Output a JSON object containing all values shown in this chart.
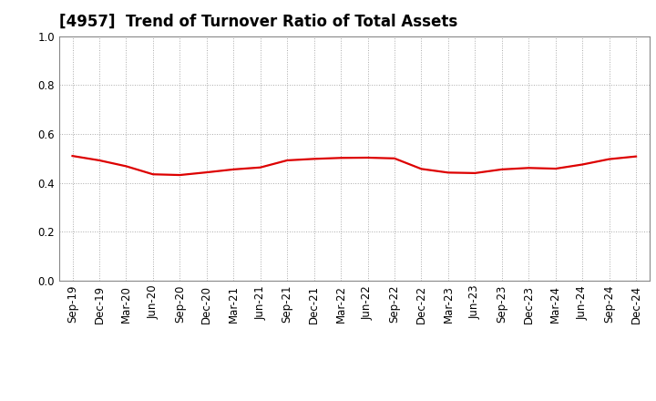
{
  "title": "[4957]  Trend of Turnover Ratio of Total Assets",
  "labels": [
    "Sep-19",
    "Dec-19",
    "Mar-20",
    "Jun-20",
    "Sep-20",
    "Dec-20",
    "Mar-21",
    "Jun-21",
    "Sep-21",
    "Dec-21",
    "Mar-22",
    "Jun-22",
    "Sep-22",
    "Dec-22",
    "Mar-23",
    "Jun-23",
    "Sep-23",
    "Dec-23",
    "Mar-24",
    "Jun-24",
    "Sep-24",
    "Dec-24"
  ],
  "values": [
    0.51,
    0.492,
    0.468,
    0.435,
    0.432,
    0.443,
    0.455,
    0.463,
    0.492,
    0.498,
    0.502,
    0.503,
    0.5,
    0.457,
    0.442,
    0.44,
    0.455,
    0.461,
    0.458,
    0.475,
    0.497,
    0.508
  ],
  "line_color": "#dd0000",
  "line_width": 1.6,
  "ylim": [
    0.0,
    1.0
  ],
  "yticks": [
    0.0,
    0.2,
    0.4,
    0.6,
    0.8,
    1.0
  ],
  "background_color": "#ffffff",
  "grid_color": "#aaaaaa",
  "title_fontsize": 12,
  "tick_fontsize": 8.5
}
